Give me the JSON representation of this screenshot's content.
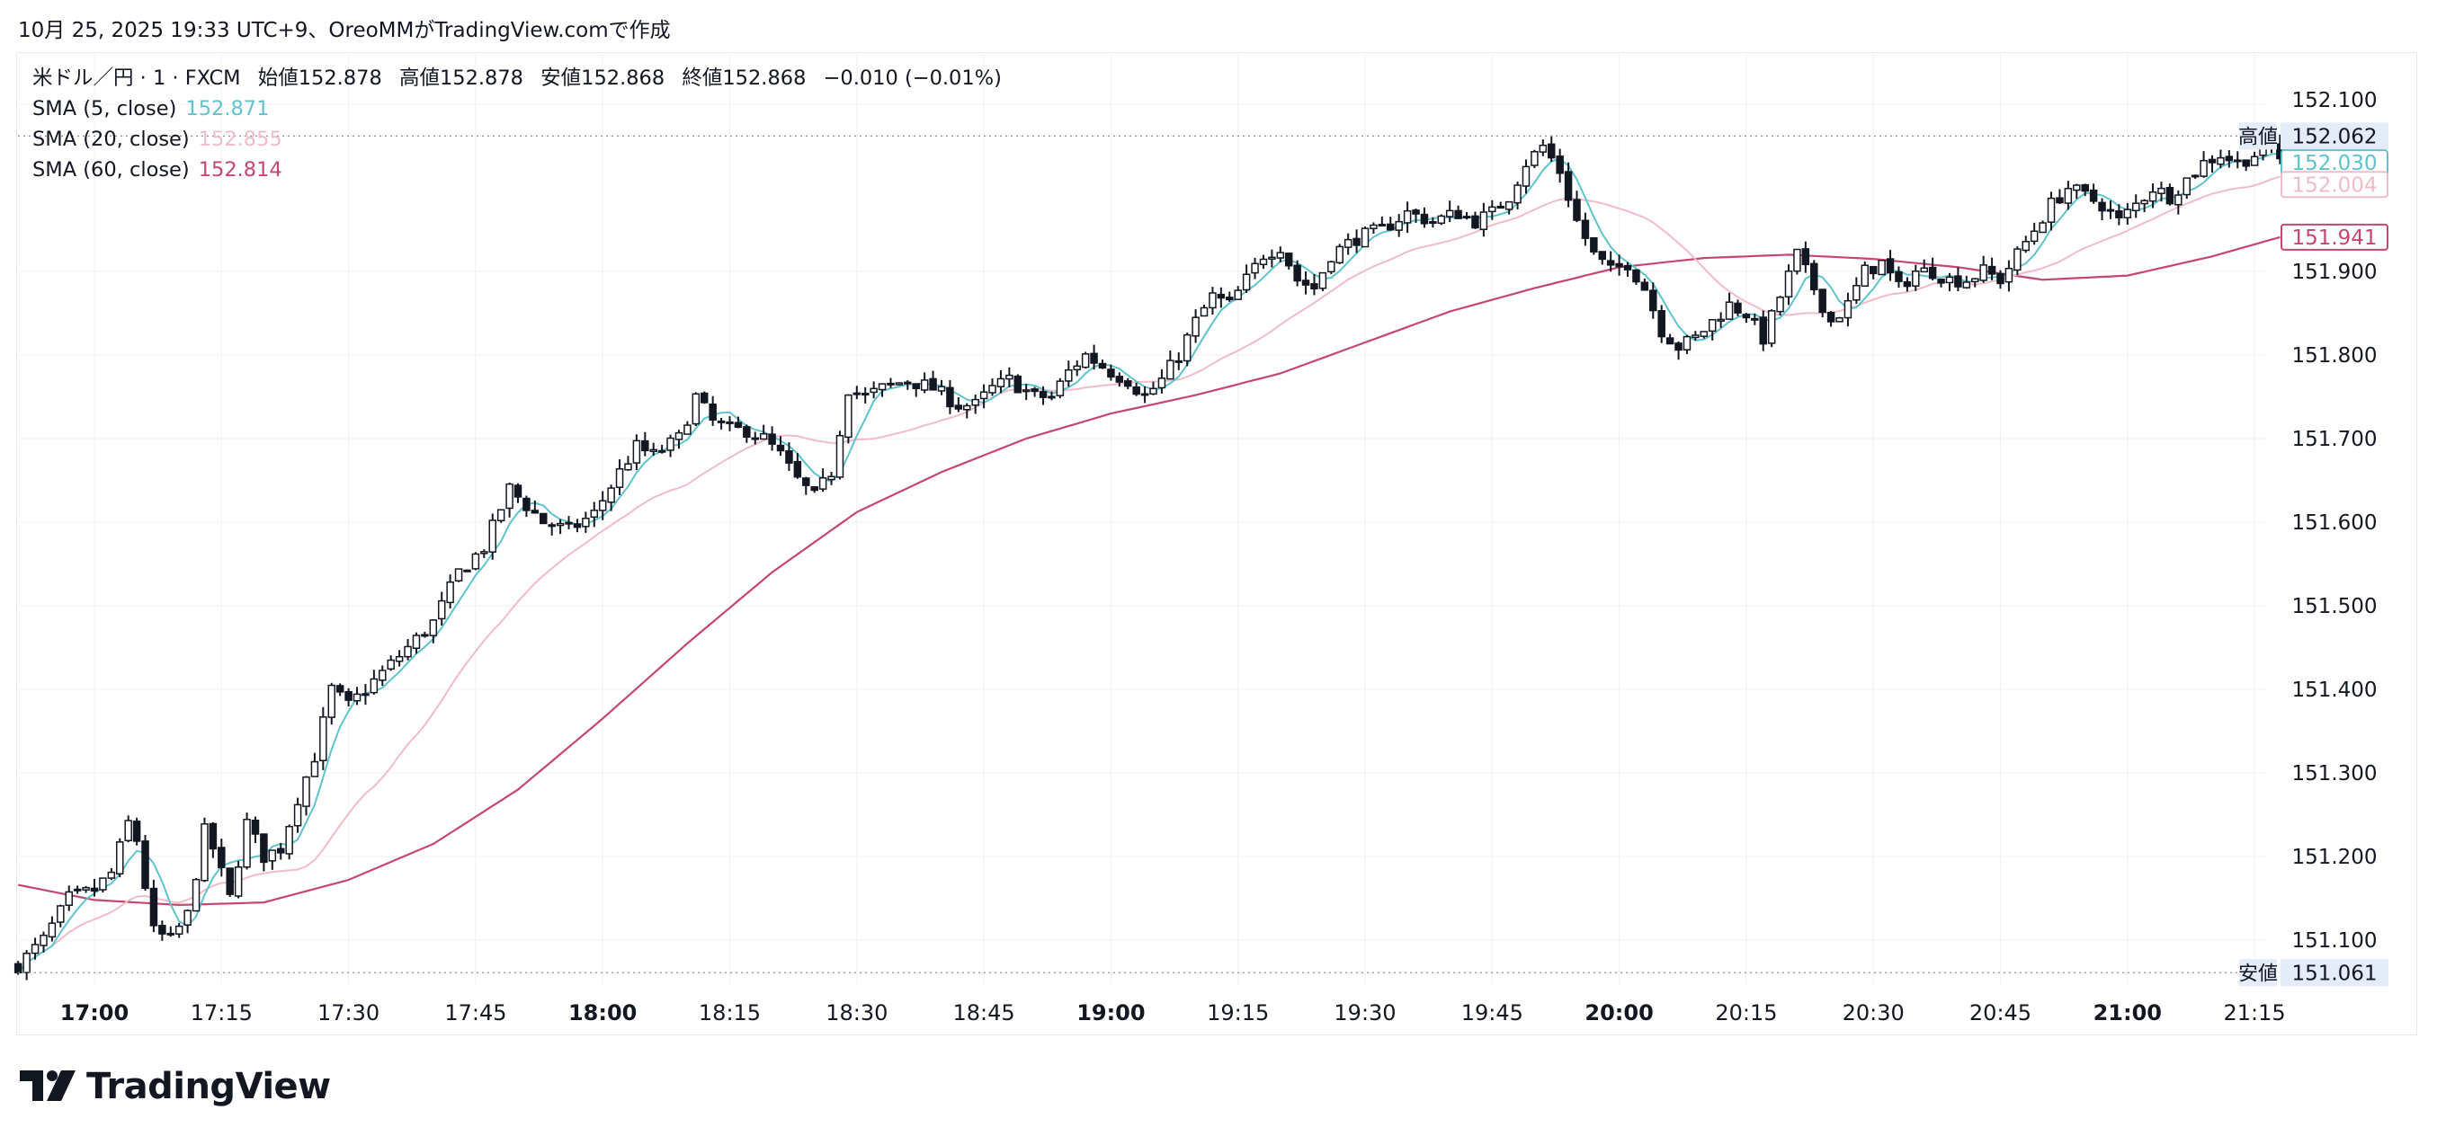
{
  "caption": "10月 25, 2025 19:33 UTC+9、OreoMMがTradingView.comで作成",
  "legend": {
    "symbol": "米ドル／円 · 1 · FXCM",
    "open": "始値152.878",
    "high": "高値152.878",
    "low": "安値152.868",
    "close": "終値152.868",
    "change": "−0.010 (−0.01%)",
    "sma5_label": "SMA (5, close)",
    "sma5_value": "152.871",
    "sma20_label": "SMA (20, close)",
    "sma20_value": "152.855",
    "sma60_label": "SMA (60, close)",
    "sma60_value": "152.814"
  },
  "logo_text": "TradingView",
  "colors": {
    "sma5": "#5ec3cc",
    "sma20": "#f0bcc8",
    "sma60": "#c5466f",
    "candle": "#131722",
    "grid": "#f0f1f4",
    "axis_text": "#131722",
    "tag_bg": "#e3ecf8"
  },
  "chart_data": {
    "type": "candlestick",
    "symbol": "USD/JPY",
    "interval": "1",
    "ylim": [
      151.05,
      152.11
    ],
    "y_ticks": [
      "152.100",
      "151.900",
      "151.800",
      "151.700",
      "151.600",
      "151.500",
      "151.400",
      "151.300",
      "151.200",
      "151.100"
    ],
    "x_ticks": [
      {
        "label": "17:00",
        "min": 0,
        "bold": true
      },
      {
        "label": "17:15",
        "min": 15,
        "bold": false
      },
      {
        "label": "17:30",
        "min": 30,
        "bold": false
      },
      {
        "label": "17:45",
        "min": 45,
        "bold": false
      },
      {
        "label": "18:00",
        "min": 60,
        "bold": true
      },
      {
        "label": "18:15",
        "min": 75,
        "bold": false
      },
      {
        "label": "18:30",
        "min": 90,
        "bold": false
      },
      {
        "label": "18:45",
        "min": 105,
        "bold": false
      },
      {
        "label": "19:00",
        "min": 120,
        "bold": true
      },
      {
        "label": "19:15",
        "min": 135,
        "bold": false
      },
      {
        "label": "19:30",
        "min": 150,
        "bold": false
      },
      {
        "label": "19:45",
        "min": 165,
        "bold": false
      },
      {
        "label": "20:00",
        "min": 180,
        "bold": true
      },
      {
        "label": "20:15",
        "min": 195,
        "bold": false
      },
      {
        "label": "20:30",
        "min": 210,
        "bold": false
      },
      {
        "label": "20:45",
        "min": 225,
        "bold": false
      },
      {
        "label": "21:00",
        "min": 240,
        "bold": true
      },
      {
        "label": "21:15",
        "min": 255,
        "bold": false
      }
    ],
    "high_line": {
      "label": "高値",
      "value": 152.062,
      "text": "152.062"
    },
    "low_line": {
      "label": "安値",
      "value": 151.061,
      "text": "151.061"
    },
    "price_tags": [
      {
        "name": "SMA (5, close)",
        "value": 152.03,
        "text": "152.030"
      },
      {
        "name": "SMA (20, close)",
        "value": 152.004,
        "text": "152.004"
      },
      {
        "name": "SMA (60, close)",
        "value": 151.941,
        "text": "151.941"
      }
    ],
    "first_minute": -9,
    "last_minute": 258,
    "price_anchors": [
      [
        -9,
        151.07
      ],
      [
        -6,
        151.1
      ],
      [
        -3,
        151.15
      ],
      [
        0,
        151.16
      ],
      [
        2,
        151.18
      ],
      [
        4,
        151.24
      ],
      [
        5,
        151.22
      ],
      [
        7,
        151.11
      ],
      [
        9,
        151.1
      ],
      [
        11,
        151.13
      ],
      [
        13,
        151.23
      ],
      [
        14,
        151.21
      ],
      [
        16,
        151.15
      ],
      [
        18,
        151.24
      ],
      [
        20,
        151.2
      ],
      [
        22,
        151.21
      ],
      [
        24,
        151.27
      ],
      [
        26,
        151.32
      ],
      [
        28,
        151.4
      ],
      [
        30,
        151.38
      ],
      [
        33,
        151.41
      ],
      [
        36,
        151.44
      ],
      [
        40,
        151.48
      ],
      [
        43,
        151.54
      ],
      [
        46,
        151.57
      ],
      [
        49,
        151.64
      ],
      [
        51,
        151.62
      ],
      [
        53,
        151.6
      ],
      [
        56,
        151.59
      ],
      [
        59,
        151.61
      ],
      [
        62,
        151.66
      ],
      [
        64,
        151.69
      ],
      [
        66,
        151.68
      ],
      [
        69,
        151.7
      ],
      [
        71,
        151.75
      ],
      [
        73,
        151.72
      ],
      [
        75,
        151.71
      ],
      [
        77,
        151.71
      ],
      [
        79,
        151.7
      ],
      [
        81,
        151.68
      ],
      [
        83,
        151.65
      ],
      [
        85,
        151.63
      ],
      [
        87,
        151.66
      ],
      [
        89,
        151.76
      ],
      [
        91,
        151.75
      ],
      [
        93,
        151.76
      ],
      [
        96,
        151.77
      ],
      [
        99,
        151.76
      ],
      [
        102,
        151.74
      ],
      [
        104,
        151.74
      ],
      [
        106,
        151.76
      ],
      [
        108,
        151.77
      ],
      [
        111,
        151.75
      ],
      [
        113,
        151.75
      ],
      [
        115,
        151.78
      ],
      [
        117,
        151.8
      ],
      [
        120,
        151.78
      ],
      [
        122,
        151.77
      ],
      [
        124,
        151.75
      ],
      [
        126,
        151.77
      ],
      [
        128,
        151.8
      ],
      [
        130,
        151.84
      ],
      [
        132,
        151.87
      ],
      [
        134,
        151.86
      ],
      [
        136,
        151.89
      ],
      [
        138,
        151.92
      ],
      [
        140,
        151.93
      ],
      [
        142,
        151.89
      ],
      [
        144,
        151.88
      ],
      [
        146,
        151.92
      ],
      [
        149,
        151.94
      ],
      [
        152,
        151.95
      ],
      [
        155,
        151.97
      ],
      [
        158,
        151.96
      ],
      [
        161,
        151.97
      ],
      [
        163,
        151.96
      ],
      [
        165,
        151.97
      ],
      [
        167,
        151.99
      ],
      [
        169,
        152.03
      ],
      [
        171,
        152.05
      ],
      [
        173,
        152.02
      ],
      [
        175,
        151.96
      ],
      [
        177,
        151.92
      ],
      [
        179,
        151.9
      ],
      [
        181,
        151.91
      ],
      [
        183,
        151.88
      ],
      [
        185,
        151.83
      ],
      [
        187,
        151.81
      ],
      [
        189,
        151.82
      ],
      [
        191,
        151.84
      ],
      [
        193,
        151.86
      ],
      [
        195,
        151.85
      ],
      [
        197,
        151.82
      ],
      [
        199,
        151.87
      ],
      [
        201,
        151.92
      ],
      [
        203,
        151.88
      ],
      [
        205,
        151.84
      ],
      [
        207,
        151.86
      ],
      [
        209,
        151.9
      ],
      [
        211,
        151.91
      ],
      [
        213,
        151.88
      ],
      [
        215,
        151.9
      ],
      [
        217,
        151.9
      ],
      [
        219,
        151.89
      ],
      [
        221,
        151.89
      ],
      [
        223,
        151.9
      ],
      [
        225,
        151.89
      ],
      [
        227,
        151.92
      ],
      [
        229,
        151.95
      ],
      [
        231,
        151.98
      ],
      [
        233,
        152.0
      ],
      [
        235,
        151.99
      ],
      [
        237,
        151.98
      ],
      [
        239,
        151.96
      ],
      [
        241,
        151.98
      ],
      [
        243,
        152.0
      ],
      [
        245,
        151.99
      ],
      [
        247,
        152.01
      ],
      [
        249,
        152.03
      ],
      [
        251,
        152.04
      ],
      [
        253,
        152.03
      ],
      [
        255,
        152.04
      ],
      [
        257,
        152.05
      ],
      [
        258,
        152.04
      ]
    ],
    "sma60_anchors": [
      [
        -9,
        151.166
      ],
      [
        0,
        151.148
      ],
      [
        10,
        151.142
      ],
      [
        20,
        151.145
      ],
      [
        30,
        151.172
      ],
      [
        40,
        151.215
      ],
      [
        50,
        151.28
      ],
      [
        60,
        151.365
      ],
      [
        70,
        151.455
      ],
      [
        80,
        151.54
      ],
      [
        90,
        151.612
      ],
      [
        100,
        151.66
      ],
      [
        110,
        151.7
      ],
      [
        120,
        151.73
      ],
      [
        130,
        151.752
      ],
      [
        140,
        151.778
      ],
      [
        150,
        151.815
      ],
      [
        160,
        151.852
      ],
      [
        170,
        151.88
      ],
      [
        180,
        151.905
      ],
      [
        190,
        151.916
      ],
      [
        200,
        151.92
      ],
      [
        210,
        151.915
      ],
      [
        220,
        151.905
      ],
      [
        230,
        151.89
      ],
      [
        240,
        151.895
      ],
      [
        250,
        151.918
      ],
      [
        258,
        151.941
      ]
    ]
  }
}
